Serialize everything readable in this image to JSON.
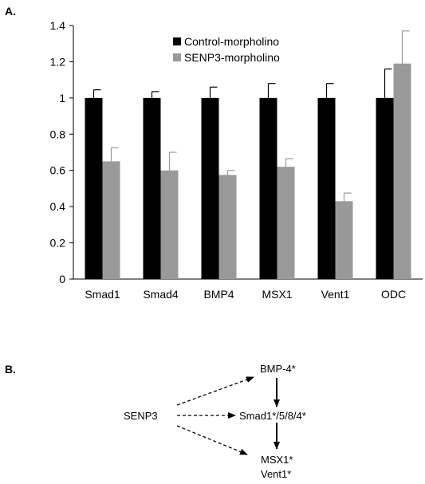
{
  "panel_a_label": "A.",
  "panel_b_label": "B.",
  "chart_data": {
    "type": "bar",
    "categories": [
      "Smad1",
      "Smad4",
      "BMP4",
      "MSX1",
      "Vent1",
      "ODC"
    ],
    "series": [
      {
        "name": "Control-morpholino",
        "color": "#000000",
        "values": [
          1.0,
          1.0,
          1.0,
          1.0,
          1.0,
          1.0
        ],
        "errors": [
          0.045,
          0.035,
          0.06,
          0.08,
          0.08,
          0.16
        ]
      },
      {
        "name": "SENP3-morpholino",
        "color": "#999999",
        "values": [
          0.65,
          0.6,
          0.575,
          0.62,
          0.43,
          1.19
        ],
        "errors": [
          0.075,
          0.1,
          0.025,
          0.045,
          0.045,
          0.18
        ]
      }
    ],
    "ylim": [
      0,
      1.4
    ],
    "yticks": [
      "0",
      "0.2",
      "0.4",
      "0.6",
      "0.8",
      "1",
      "1.2",
      "1.4"
    ],
    "legend_position": "top-center",
    "grid": false
  },
  "diagram": {
    "nodes": {
      "senp3": "SENP3",
      "bmp4": "BMP-4*",
      "smad": "Smad1*/5/8/4*",
      "msx1": "MSX1*",
      "vent1": "Vent1*"
    }
  }
}
